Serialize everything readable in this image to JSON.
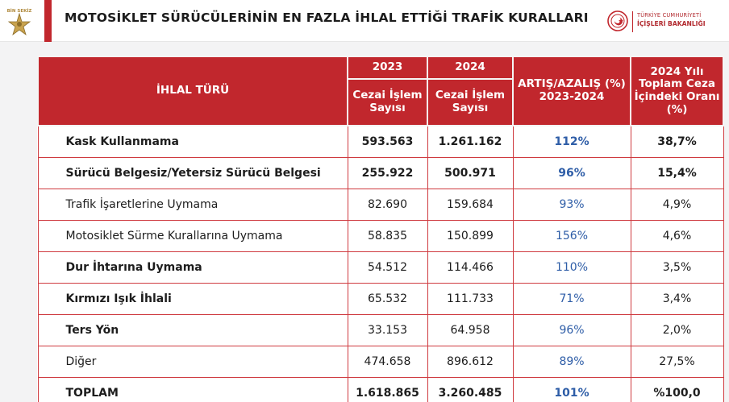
{
  "header": {
    "logo_text": "BİN SEKİZ",
    "title": "MOTOSİKLET SÜRÜCÜLERİNİN EN FAZLA İHLAL ETTİĞİ TRAFİK KURALLARI",
    "ministry_line1": "TÜRKİYE CUMHURİYETİ",
    "ministry_line2": "İÇİŞLERİ BAKANLIĞI",
    "accent_color": "#c1272d"
  },
  "table": {
    "col_violation": "İHLAL TÜRÜ",
    "col_year_2023": "2023",
    "col_year_2024": "2024",
    "col_sub_2023": "Cezai İşlem Sayısı",
    "col_sub_2024": "Cezai İşlem Sayısı",
    "col_change": "ARTIŞ/AZALIŞ (%) 2023-2024",
    "col_share": "2024 Yılı Toplam Ceza İçindeki Oranı (%)",
    "rows": [
      {
        "name": "Kask Kullanmama",
        "v2023": "593.563",
        "v2024": "1.261.162",
        "change": "112%",
        "share": "38,7%"
      },
      {
        "name": "Sürücü Belgesiz/Yetersiz Sürücü Belgesi",
        "v2023": "255.922",
        "v2024": "500.971",
        "change": "96%",
        "share": "15,4%"
      },
      {
        "name": "Trafik İşaretlerine Uymama",
        "v2023": "82.690",
        "v2024": "159.684",
        "change": "93%",
        "share": "4,9%"
      },
      {
        "name": "Motosiklet Sürme Kurallarına Uymama",
        "v2023": "58.835",
        "v2024": "150.899",
        "change": "156%",
        "share": "4,6%"
      },
      {
        "name": "Dur İhtarına Uymama",
        "v2023": "54.512",
        "v2024": "114.466",
        "change": "110%",
        "share": "3,5%"
      },
      {
        "name": "Kırmızı Işık İhlali",
        "v2023": "65.532",
        "v2024": "111.733",
        "change": "71%",
        "share": "3,4%"
      },
      {
        "name": "Ters Yön",
        "v2023": "33.153",
        "v2024": "64.958",
        "change": "96%",
        "share": "2,0%"
      },
      {
        "name": "Diğer",
        "v2023": "474.658",
        "v2024": "896.612",
        "change": "89%",
        "share": "27,5%"
      },
      {
        "name": "TOPLAM",
        "v2023": "1.618.865",
        "v2024": "3.260.485",
        "change": "101%",
        "share": "%100,0"
      }
    ]
  }
}
